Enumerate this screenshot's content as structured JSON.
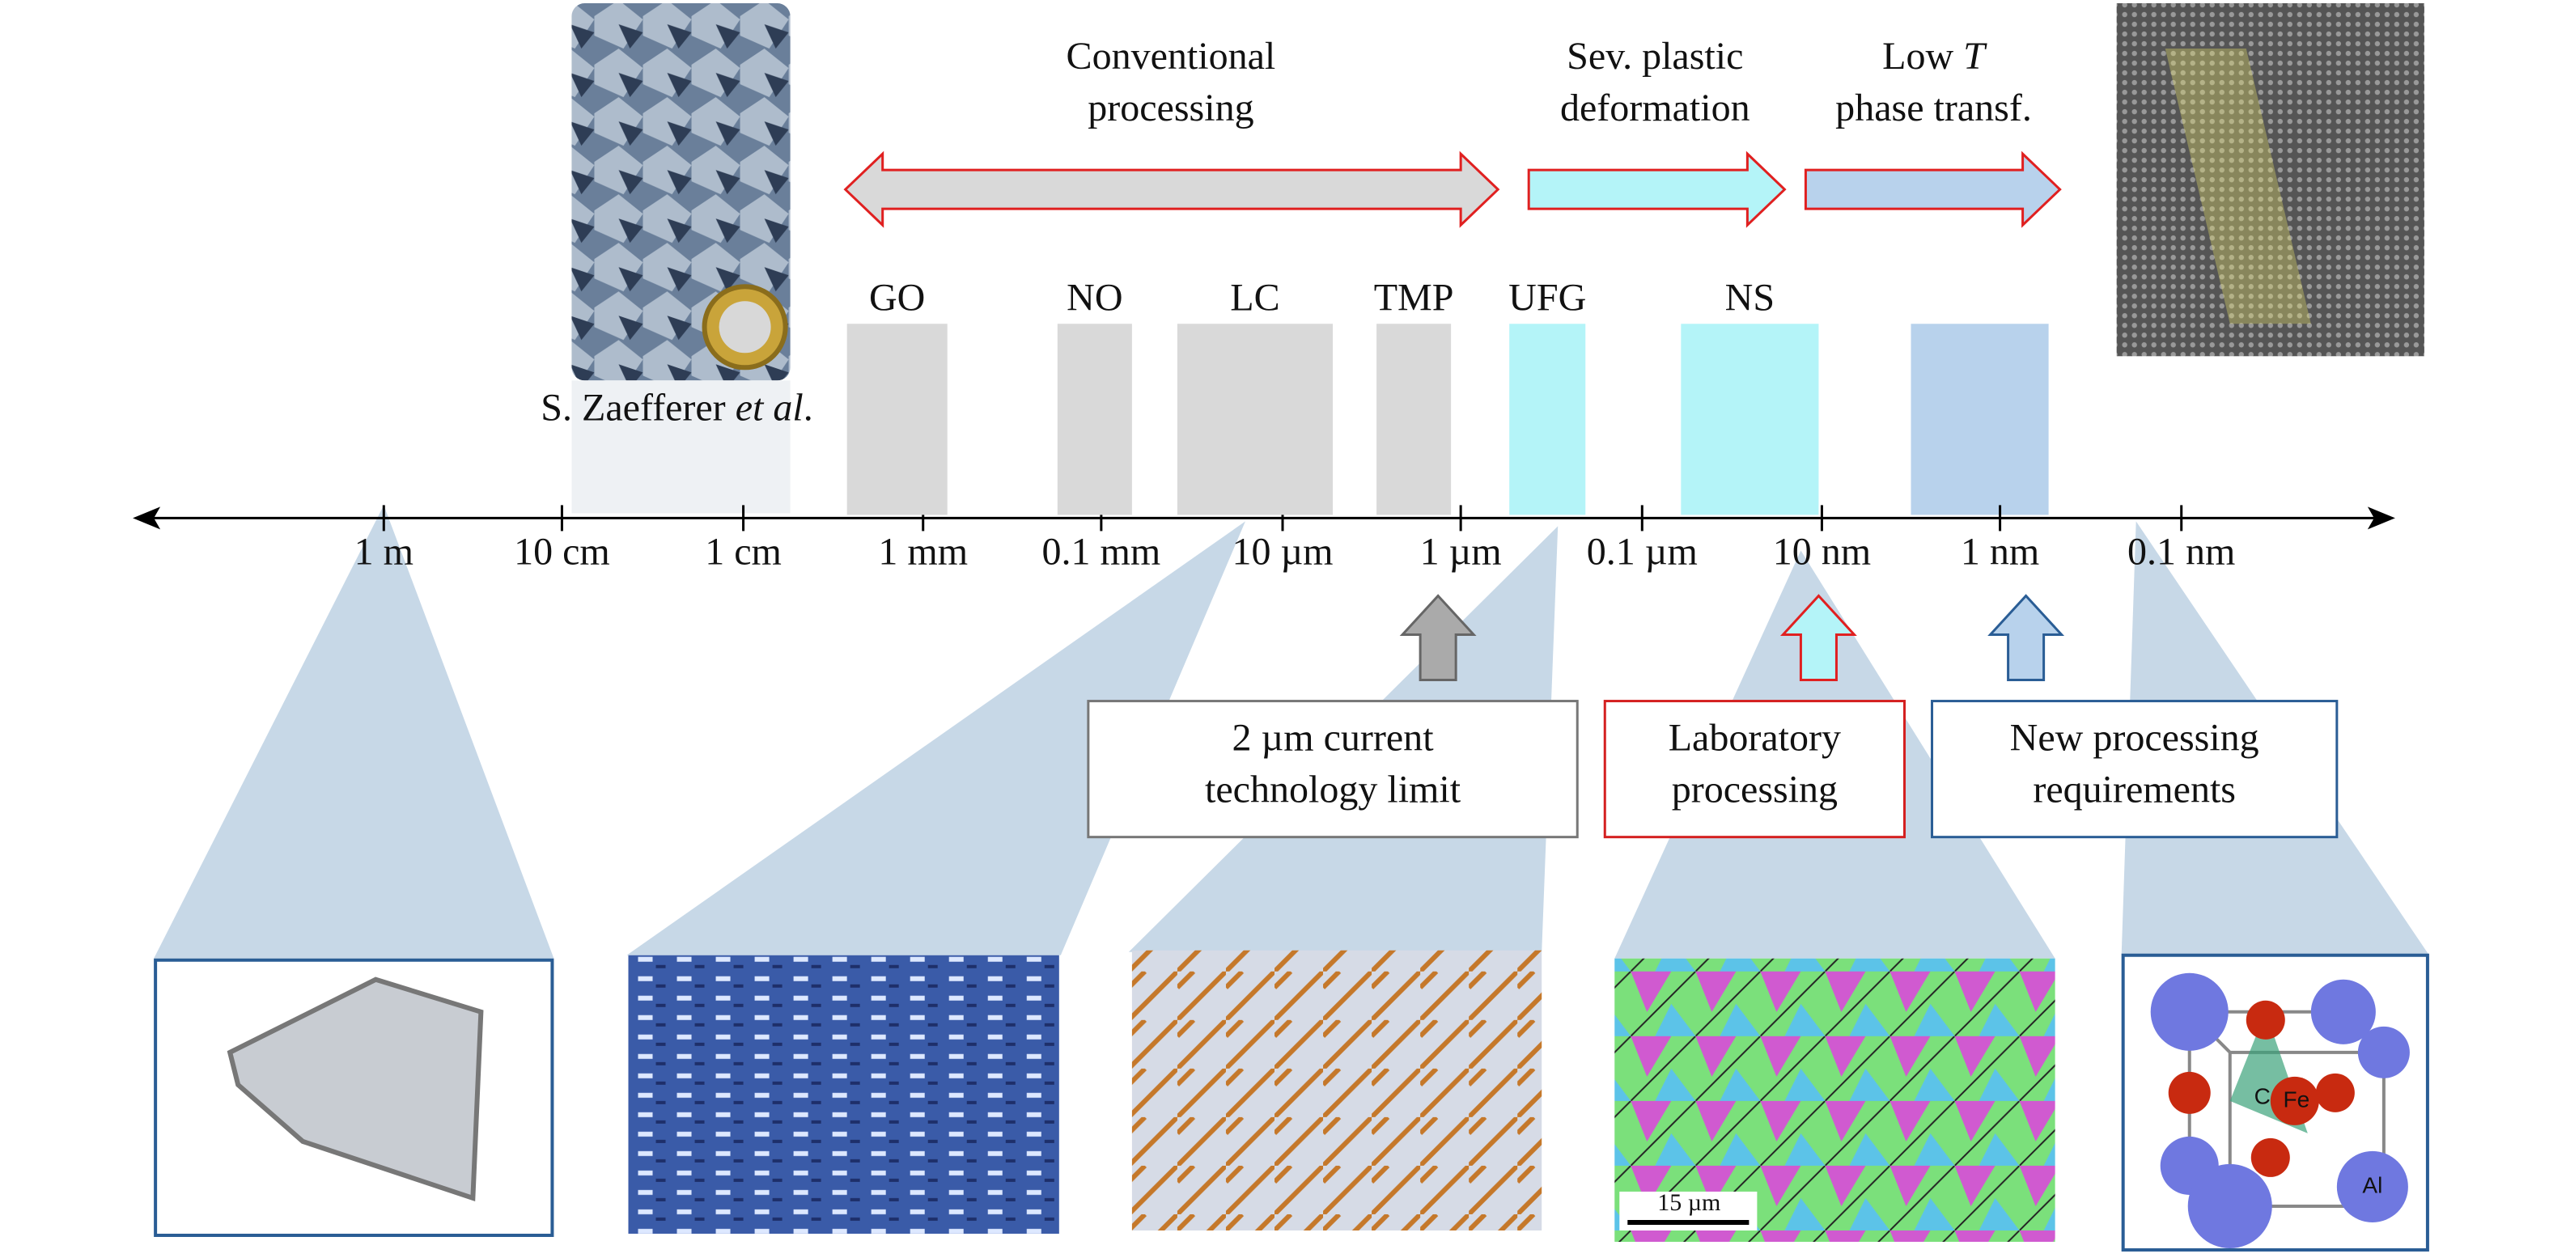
{
  "axis_ticks": [
    "1 m",
    "10 cm",
    "1 cm",
    "1 mm",
    "0.1 mm",
    "10 µm",
    "1 µm",
    "0.1 µm",
    "10 nm",
    "1 nm",
    "0.1 nm"
  ],
  "processes": {
    "conventional": [
      "Conventional",
      "processing"
    ],
    "severe": [
      "Sev. plastic",
      "deformation"
    ],
    "low_t": {
      "word": "Low",
      "italic": "T",
      "line2": "phase transf."
    }
  },
  "categories": [
    "GO",
    "NO",
    "LC",
    "TMP",
    "UFG",
    "NS"
  ],
  "callouts": [
    [
      "2 µm current",
      "technology limit"
    ],
    [
      "Laboratory",
      "processing"
    ],
    [
      "New processing",
      "requirements"
    ]
  ],
  "attribution": {
    "name": "S. Zaefferer",
    "italic": "et al",
    "end": "."
  },
  "scale_bar": "15 µm",
  "crystal_labels": [
    "C",
    "Fe",
    "Al"
  ]
}
